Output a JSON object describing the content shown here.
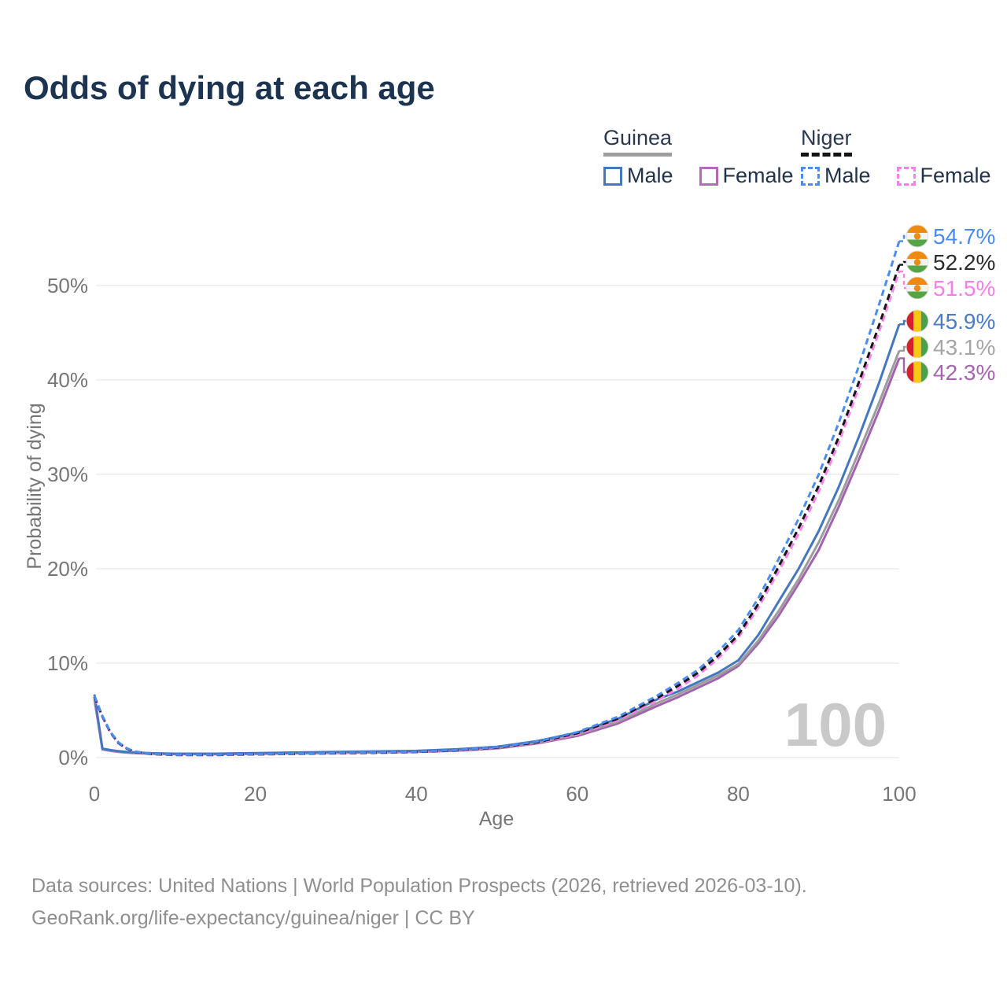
{
  "title": "Odds of dying at each age",
  "legend": {
    "groups": [
      {
        "country": "Guinea",
        "rule_style": "solid",
        "rule_color": "#9e9e9e",
        "items": [
          {
            "label": "Male",
            "color": "#4577c0",
            "dashed": false
          },
          {
            "label": "Female",
            "color": "#b16cb5",
            "dashed": false
          }
        ]
      },
      {
        "country": "Niger",
        "rule_style": "dashed",
        "rule_color": "#141414",
        "items": [
          {
            "label": "Male",
            "color": "#4a8cf0",
            "dashed": true
          },
          {
            "label": "Female",
            "color": "#fb80ee",
            "dashed": true
          }
        ]
      }
    ]
  },
  "chart_data": {
    "type": "line",
    "title": "Odds of dying at each age",
    "xlabel": "Age",
    "ylabel": "Probability of dying",
    "xlim": [
      0,
      100
    ],
    "ylim": [
      0,
      57
    ],
    "x_ticks": [
      0,
      20,
      40,
      60,
      80,
      100
    ],
    "y_ticks": [
      {
        "value": 0,
        "label": "0%"
      },
      {
        "value": 10,
        "label": "10%"
      },
      {
        "value": 20,
        "label": "20%"
      },
      {
        "value": 30,
        "label": "30%"
      },
      {
        "value": 40,
        "label": "40%"
      },
      {
        "value": 50,
        "label": "50%"
      }
    ],
    "grid": true,
    "legend_position": "top-right",
    "watermark": "100",
    "ages": [
      0,
      1,
      2,
      3,
      4,
      5,
      7,
      10,
      15,
      20,
      25,
      30,
      35,
      40,
      45,
      50,
      55,
      60,
      65,
      70,
      72.5,
      75,
      77.5,
      80,
      82.5,
      85,
      87.5,
      90,
      92.5,
      95,
      97.5,
      100
    ],
    "series": [
      {
        "name": "Niger Male",
        "country": "Niger",
        "sex": "Male",
        "color": "#4a8cf0",
        "dashed": true,
        "flag": "niger",
        "end_label": "54.7%",
        "label_color": "#478bf0",
        "values": [
          6.55,
          4.4,
          2.7,
          1.6,
          1.0,
          0.65,
          0.4,
          0.3,
          0.3,
          0.36,
          0.42,
          0.48,
          0.55,
          0.63,
          0.8,
          1.1,
          1.7,
          2.7,
          4.3,
          6.6,
          7.9,
          9.3,
          11.2,
          13.5,
          16.9,
          21.0,
          25.3,
          30.0,
          35.5,
          41.5,
          48.0,
          54.7
        ]
      },
      {
        "name": "Niger Both sexes",
        "country": "Niger",
        "sex": "Both",
        "color": "#161616",
        "dashed": true,
        "flag": "niger",
        "end_label": "52.2%",
        "label_color": "#2b2b2b",
        "values": [
          6.45,
          4.35,
          2.65,
          1.55,
          0.97,
          0.62,
          0.38,
          0.28,
          0.28,
          0.34,
          0.4,
          0.46,
          0.52,
          0.6,
          0.77,
          1.05,
          1.62,
          2.58,
          4.12,
          6.35,
          7.6,
          9.0,
          10.8,
          13.0,
          16.3,
          20.2,
          24.3,
          28.8,
          34.0,
          39.8,
          45.8,
          52.2
        ]
      },
      {
        "name": "Niger Female",
        "country": "Niger",
        "sex": "Female",
        "color": "#fb80ee",
        "dashed": true,
        "flag": "niger",
        "end_label": "51.5%",
        "label_color": "#fa7deb",
        "values": [
          6.35,
          4.3,
          2.6,
          1.5,
          0.95,
          0.6,
          0.36,
          0.27,
          0.26,
          0.33,
          0.38,
          0.44,
          0.5,
          0.58,
          0.73,
          1.0,
          1.55,
          2.45,
          3.95,
          6.1,
          7.3,
          8.7,
          10.5,
          12.7,
          15.9,
          19.7,
          23.7,
          28.2,
          33.4,
          39.2,
          45.1,
          51.5
        ]
      },
      {
        "name": "Guinea Male",
        "country": "Guinea",
        "sex": "Male",
        "color": "#4577c0",
        "dashed": false,
        "flag": "guinea",
        "end_label": "45.9%",
        "label_color": "#4a7bc4",
        "values": [
          6.7,
          0.95,
          0.8,
          0.68,
          0.6,
          0.55,
          0.47,
          0.42,
          0.42,
          0.48,
          0.54,
          0.6,
          0.66,
          0.72,
          0.88,
          1.15,
          1.75,
          2.65,
          4.1,
          6.2,
          7.0,
          8.0,
          9.0,
          10.3,
          13.0,
          16.5,
          20.0,
          24.0,
          28.7,
          34.0,
          39.7,
          45.9
        ]
      },
      {
        "name": "Guinea Both sexes",
        "country": "Guinea",
        "sex": "Both",
        "color": "#9c9c9c",
        "dashed": false,
        "flag": "guinea",
        "end_label": "43.1%",
        "label_color": "#a5a5a5",
        "values": [
          6.45,
          0.9,
          0.76,
          0.64,
          0.57,
          0.52,
          0.44,
          0.4,
          0.39,
          0.44,
          0.49,
          0.55,
          0.6,
          0.66,
          0.8,
          1.05,
          1.6,
          2.45,
          3.8,
          5.8,
          6.7,
          7.7,
          8.7,
          9.9,
          12.4,
          15.5,
          18.9,
          22.8,
          27.3,
          32.4,
          37.6,
          43.1
        ]
      },
      {
        "name": "Guinea Female",
        "country": "Guinea",
        "sex": "Female",
        "color": "#a263ae",
        "dashed": false,
        "flag": "guinea",
        "end_label": "42.3%",
        "label_color": "#a565ae",
        "values": [
          6.2,
          0.86,
          0.72,
          0.6,
          0.53,
          0.48,
          0.41,
          0.37,
          0.36,
          0.4,
          0.45,
          0.5,
          0.55,
          0.6,
          0.73,
          0.97,
          1.5,
          2.3,
          3.6,
          5.5,
          6.4,
          7.4,
          8.4,
          9.7,
          12.1,
          15.0,
          18.4,
          22.0,
          26.6,
          31.6,
          36.8,
          42.3
        ]
      }
    ],
    "flag_colors": {
      "niger": {
        "top": "#f0890f",
        "middle": "#f2f2f2",
        "bottom": "#55a546",
        "disc": "#f0890f"
      },
      "guinea": {
        "left": "#d61f2c",
        "center": "#f8c712",
        "right": "#48a24c"
      }
    },
    "style": {
      "grid_color": "#ececec",
      "axis_text_color": "#767676",
      "watermark_color": "#c9c9c9",
      "title_color": "#1c3450"
    }
  },
  "footer": {
    "line1": "Data sources: United Nations | World Population Prospects (2026, retrieved 2026-03-10).",
    "line2": "GeoRank.org/life-expectancy/guinea/niger | CC BY"
  }
}
